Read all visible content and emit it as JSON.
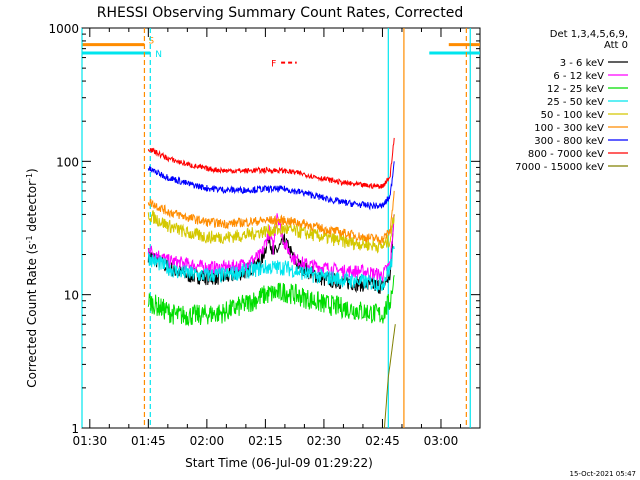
{
  "chart_data": {
    "type": "line",
    "title": "RHESSI Observing Summary Count Rates, Corrected",
    "xlabel": "Start Time (06-Jul-09 01:29:22)",
    "ylabel": "Corrected Count Rate (s⁻¹ detector⁻¹)",
    "ylabel_parts": [
      "Corrected Count Rate (s",
      "-1",
      " detector",
      "-1",
      ")"
    ],
    "xlim_minutes": [
      88,
      190
    ],
    "ylim": [
      1,
      1000
    ],
    "yscale": "log",
    "grid": false,
    "x_ticks": [
      {
        "label": "01:30",
        "minutes": 90
      },
      {
        "label": "01:45",
        "minutes": 105
      },
      {
        "label": "02:00",
        "minutes": 120
      },
      {
        "label": "02:15",
        "minutes": 135
      },
      {
        "label": "02:30",
        "minutes": 150
      },
      {
        "label": "02:45",
        "minutes": 165
      },
      {
        "label": "03:00",
        "minutes": 180
      }
    ],
    "y_ticks": [
      {
        "label": "1",
        "value": 1
      },
      {
        "label": "10",
        "value": 10
      },
      {
        "label": "100",
        "value": 100
      },
      {
        "label": "1000",
        "value": 1000
      }
    ],
    "legend": {
      "placement": "right",
      "header": [
        "Det 1,3,4,5,6,9,",
        "Att 0"
      ],
      "entries": [
        {
          "label": "3 - 6 keV",
          "color": "#000000"
        },
        {
          "label": "6 - 12 keV",
          "color": "#ff00ff"
        },
        {
          "label": "12 - 25 keV",
          "color": "#00dd00"
        },
        {
          "label": "25 - 50 keV",
          "color": "#00e5ee"
        },
        {
          "label": "50 - 100 keV",
          "color": "#d4c800"
        },
        {
          "label": "100 - 300 keV",
          "color": "#ff8c00"
        },
        {
          "label": "300 - 800 keV",
          "color": "#0000ff"
        },
        {
          "label": "800 - 7000 keV",
          "color": "#ff0000"
        },
        {
          "label": "7000 - 15000 keV",
          "color": "#808000"
        }
      ]
    },
    "markers": {
      "saa": {
        "label": "S",
        "color": "#ff8c00",
        "intervals": [
          [
            88,
            104
          ],
          [
            182,
            190
          ]
        ],
        "value": 750
      },
      "night": {
        "label": "N",
        "color": "#00e5ee",
        "intervals": [
          [
            88,
            105.5
          ],
          [
            177,
            190
          ]
        ],
        "value": 650
      },
      "flare": {
        "label": "F",
        "color": "#ff0000",
        "interval": [
          138,
          142
        ],
        "value": 550
      }
    },
    "vertical_lines": [
      {
        "minutes": 104,
        "color": "#ff8c00",
        "style": "dashed"
      },
      {
        "minutes": 105.5,
        "color": "#00e5ee",
        "style": "dashed"
      },
      {
        "minutes": 166.5,
        "color": "#00e5ee",
        "style": "solid"
      },
      {
        "minutes": 170.5,
        "color": "#ff8c00",
        "style": "solid"
      },
      {
        "minutes": 88,
        "color": "#00e5ee",
        "style": "solid"
      },
      {
        "minutes": 187.5,
        "color": "#00e5ee",
        "style": "solid"
      },
      {
        "minutes": 186.5,
        "color": "#ff8c00",
        "style": "dashed"
      }
    ],
    "series": [
      {
        "label": "3 - 6 keV",
        "color": "#000000",
        "noise": 0.06,
        "points": [
          [
            105,
            20
          ],
          [
            110,
            16
          ],
          [
            115,
            14
          ],
          [
            120,
            13.5
          ],
          [
            125,
            13.5
          ],
          [
            130,
            15
          ],
          [
            134,
            18
          ],
          [
            136,
            28
          ],
          [
            137,
            20
          ],
          [
            140,
            25
          ],
          [
            143,
            17
          ],
          [
            146,
            15
          ],
          [
            150,
            13
          ],
          [
            155,
            12.5
          ],
          [
            160,
            12
          ],
          [
            165,
            11.5
          ],
          [
            167,
            14
          ],
          [
            168,
            40
          ]
        ]
      },
      {
        "label": "6 - 12 keV",
        "color": "#ff00ff",
        "noise": 0.05,
        "points": [
          [
            105,
            22
          ],
          [
            110,
            18
          ],
          [
            115,
            17
          ],
          [
            120,
            16
          ],
          [
            125,
            16
          ],
          [
            130,
            17
          ],
          [
            134,
            20
          ],
          [
            136,
            30
          ],
          [
            137,
            22
          ],
          [
            138,
            42
          ],
          [
            139,
            30
          ],
          [
            140,
            24
          ],
          [
            142,
            19
          ],
          [
            145,
            17
          ],
          [
            150,
            16
          ],
          [
            155,
            15
          ],
          [
            160,
            15
          ],
          [
            165,
            14
          ],
          [
            167,
            17
          ],
          [
            168,
            40
          ]
        ]
      },
      {
        "label": "12 - 25 keV",
        "color": "#00dd00",
        "noise": 0.08,
        "points": [
          [
            105,
            9
          ],
          [
            108,
            8
          ],
          [
            112,
            7
          ],
          [
            118,
            7
          ],
          [
            124,
            7.3
          ],
          [
            130,
            8.5
          ],
          [
            135,
            10
          ],
          [
            140,
            10.5
          ],
          [
            145,
            9.5
          ],
          [
            150,
            8.5
          ],
          [
            155,
            8
          ],
          [
            160,
            7.5
          ],
          [
            165,
            7
          ],
          [
            167,
            9
          ],
          [
            168,
            14
          ]
        ]
      },
      {
        "label": "25 - 50 keV",
        "color": "#00e5ee",
        "noise": 0.06,
        "points": [
          [
            105,
            19
          ],
          [
            108,
            17
          ],
          [
            112,
            15
          ],
          [
            118,
            14
          ],
          [
            124,
            14
          ],
          [
            130,
            15
          ],
          [
            135,
            16
          ],
          [
            140,
            16
          ],
          [
            145,
            14.5
          ],
          [
            150,
            13.5
          ],
          [
            155,
            13
          ],
          [
            160,
            12.5
          ],
          [
            165,
            12
          ],
          [
            167,
            16
          ],
          [
            168,
            22
          ]
        ]
      },
      {
        "label": "50 - 100 keV",
        "color": "#d4c800",
        "noise": 0.05,
        "points": [
          [
            105,
            40
          ],
          [
            110,
            33
          ],
          [
            115,
            29
          ],
          [
            120,
            27
          ],
          [
            125,
            27
          ],
          [
            130,
            28
          ],
          [
            135,
            30
          ],
          [
            140,
            31
          ],
          [
            145,
            29
          ],
          [
            150,
            27
          ],
          [
            155,
            25
          ],
          [
            160,
            24
          ],
          [
            165,
            23
          ],
          [
            167,
            26
          ],
          [
            168,
            40
          ]
        ]
      },
      {
        "label": "100 - 300 keV",
        "color": "#ff8c00",
        "noise": 0.035,
        "points": [
          [
            105,
            50
          ],
          [
            110,
            42
          ],
          [
            115,
            38
          ],
          [
            120,
            35
          ],
          [
            125,
            34
          ],
          [
            130,
            35
          ],
          [
            135,
            36
          ],
          [
            140,
            36
          ],
          [
            145,
            34
          ],
          [
            150,
            31
          ],
          [
            155,
            29
          ],
          [
            160,
            27
          ],
          [
            165,
            26
          ],
          [
            167,
            30
          ],
          [
            168,
            60
          ]
        ]
      },
      {
        "label": "300 - 800 keV",
        "color": "#0000ff",
        "noise": 0.025,
        "points": [
          [
            105,
            88
          ],
          [
            110,
            76
          ],
          [
            115,
            68
          ],
          [
            120,
            63
          ],
          [
            125,
            61
          ],
          [
            130,
            61
          ],
          [
            135,
            62
          ],
          [
            140,
            62
          ],
          [
            145,
            58
          ],
          [
            150,
            53
          ],
          [
            155,
            49
          ],
          [
            160,
            47
          ],
          [
            165,
            46
          ],
          [
            167,
            55
          ],
          [
            168,
            100
          ]
        ]
      },
      {
        "label": "800 - 7000 keV",
        "color": "#ff0000",
        "noise": 0.02,
        "points": [
          [
            105,
            125
          ],
          [
            110,
            105
          ],
          [
            115,
            95
          ],
          [
            120,
            88
          ],
          [
            125,
            85
          ],
          [
            130,
            85
          ],
          [
            135,
            86
          ],
          [
            140,
            85
          ],
          [
            145,
            80
          ],
          [
            150,
            74
          ],
          [
            155,
            69
          ],
          [
            160,
            66
          ],
          [
            165,
            65
          ],
          [
            167,
            78
          ],
          [
            168,
            150
          ]
        ]
      },
      {
        "label": "7000 - 15000 keV",
        "color": "#808000",
        "noise": 0.0,
        "points": [
          [
            165.5,
            1
          ],
          [
            166.5,
            2.4
          ],
          [
            167.3,
            3.6
          ],
          [
            168,
            5.2
          ],
          [
            168.3,
            6
          ]
        ]
      }
    ],
    "timestamp": "15-Oct-2021 05:47"
  }
}
